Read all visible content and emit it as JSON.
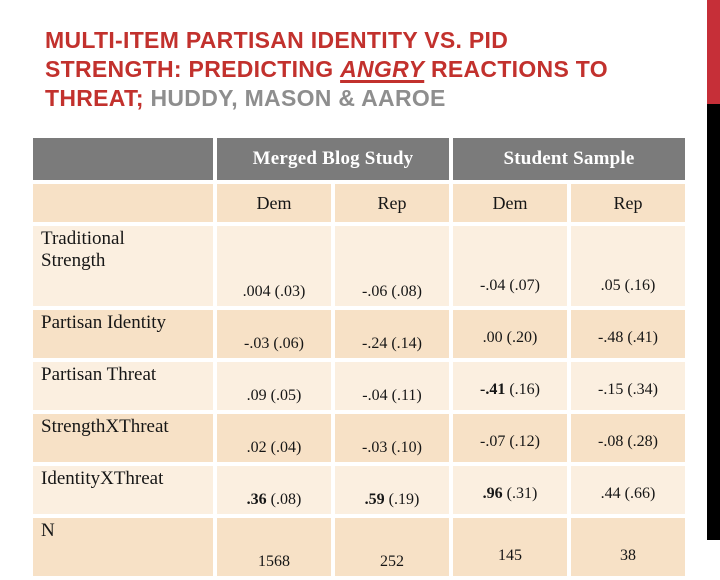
{
  "title": {
    "line1": "MULTI-ITEM PARTISAN IDENTITY VS. PID",
    "line2_before": "STRENGTH: PREDICTING",
    "line2_emphasis": "ANGRY",
    "line2_after": "REACTIONS TO",
    "line3_accent": "THREAT;",
    "line3_muted": "HUDDY, MASON & AAROE"
  },
  "table": {
    "group_headers": [
      {
        "label": "Merged Blog Study",
        "colspan": 2
      },
      {
        "label": "Student Sample",
        "colspan": 2
      }
    ],
    "column_headers": [
      "Dem",
      "Rep",
      "Dem",
      "Rep"
    ],
    "rows": [
      {
        "label": "Traditional\nStrength",
        "variant": "tall",
        "cells": [
          {
            "coef": ".004",
            "se": "(.03)",
            "bold": false
          },
          {
            "coef": "-.06",
            "se": "(.08)",
            "bold": false
          },
          {
            "coef": "-.04",
            "se": "(.07)",
            "bold": false
          },
          {
            "coef": ".05",
            "se": "(.16)",
            "bold": false
          }
        ]
      },
      {
        "label": "Partisan Identity",
        "cells": [
          {
            "coef": "-.03",
            "se": "(.06)",
            "bold": false
          },
          {
            "coef": "-.24",
            "se": "(.14)",
            "bold": false
          },
          {
            "coef": ".00",
            "se": "(.20)",
            "bold": false
          },
          {
            "coef": "-.48",
            "se": "(.41)",
            "bold": false
          }
        ]
      },
      {
        "label": "Partisan Threat",
        "cells": [
          {
            "coef": ".09",
            "se": "(.05)",
            "bold": false
          },
          {
            "coef": "-.04",
            "se": "(.11)",
            "bold": false
          },
          {
            "coef": "-.41",
            "se": "(.16)",
            "bold": true
          },
          {
            "coef": "-.15",
            "se": "(.34)",
            "bold": false
          }
        ]
      },
      {
        "label": "StrengthXThreat",
        "cells": [
          {
            "coef": ".02",
            "se": "(.04)",
            "bold": false
          },
          {
            "coef": "-.03",
            "se": "(.10)",
            "bold": false
          },
          {
            "coef": "-.07",
            "se": "(.12)",
            "bold": false
          },
          {
            "coef": "-.08",
            "se": "(.28)",
            "bold": false
          }
        ]
      },
      {
        "label": "IdentityXThreat",
        "cells": [
          {
            "coef": ".36",
            "se": "(.08)",
            "bold": true
          },
          {
            "coef": ".59",
            "se": "(.19)",
            "bold": true
          },
          {
            "coef": ".96",
            "se": "(.31)",
            "bold": true
          },
          {
            "coef": ".44",
            "se": "(.66)",
            "bold": false
          }
        ]
      },
      {
        "label": "N",
        "variant": "n",
        "cells": [
          {
            "coef": "1568",
            "se": "",
            "bold": false
          },
          {
            "coef": "252",
            "se": "",
            "bold": false
          },
          {
            "coef": "145",
            "se": "",
            "bold": false
          },
          {
            "coef": "38",
            "se": "",
            "bold": false
          }
        ]
      }
    ]
  },
  "colors": {
    "accent_red": "#C2312D",
    "muted_gray": "#8E8E8E",
    "header_gray": "#7B7B7B",
    "band_light": "#FBEFE0",
    "band_dark": "#F7E1C6",
    "sidebar_red": "#C62F38",
    "sidebar_black": "#000000"
  }
}
